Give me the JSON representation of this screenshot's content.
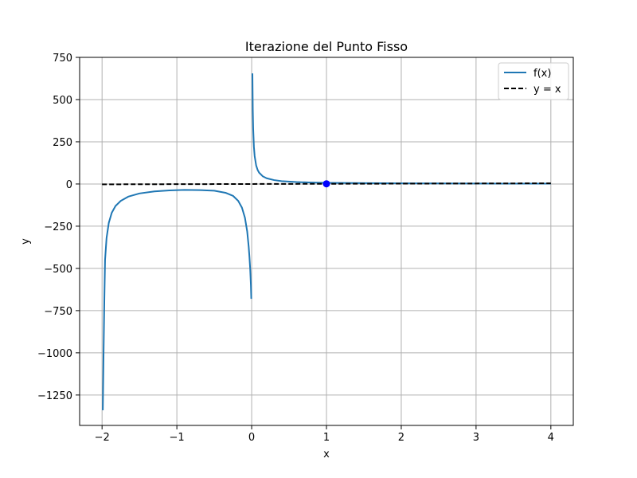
{
  "chart_data": {
    "type": "line",
    "title": "Iterazione del Punto Fisso",
    "xlabel": "x",
    "ylabel": "y",
    "xlim": [
      -2.3,
      4.3
    ],
    "ylim": [
      -1430,
      750
    ],
    "x_ticks": [
      -2,
      -1,
      0,
      1,
      2,
      3,
      4
    ],
    "x_tick_labels": [
      "−2",
      "−1",
      "0",
      "1",
      "2",
      "3",
      "4"
    ],
    "y_ticks": [
      750,
      500,
      250,
      0,
      -250,
      -500,
      -750,
      -1000,
      -1250
    ],
    "y_tick_labels": [
      "750",
      "500",
      "250",
      "0",
      "−250",
      "−500",
      "−750",
      "−1000",
      "−1250"
    ],
    "grid": true,
    "legend_position": "top-right",
    "series": [
      {
        "name": "f(x)",
        "style": "solid",
        "color": "#1f77b4",
        "segments": [
          [
            [
              -1.99,
              -1340
            ],
            [
              -1.98,
              -1000
            ],
            [
              -1.97,
              -700
            ],
            [
              -1.96,
              -450
            ],
            [
              -1.94,
              -320
            ],
            [
              -1.91,
              -230
            ],
            [
              -1.87,
              -170
            ],
            [
              -1.82,
              -130
            ],
            [
              -1.75,
              -100
            ],
            [
              -1.65,
              -75
            ],
            [
              -1.5,
              -56
            ],
            [
              -1.3,
              -44
            ],
            [
              -1.1,
              -38
            ],
            [
              -0.9,
              -35
            ],
            [
              -0.7,
              -36
            ],
            [
              -0.5,
              -40
            ],
            [
              -0.35,
              -52
            ],
            [
              -0.25,
              -70
            ],
            [
              -0.18,
              -100
            ],
            [
              -0.13,
              -140
            ],
            [
              -0.09,
              -200
            ],
            [
              -0.06,
              -280
            ],
            [
              -0.04,
              -370
            ],
            [
              -0.03,
              -430
            ],
            [
              -0.02,
              -500
            ],
            [
              -0.01,
              -600
            ],
            [
              -0.005,
              -680
            ]
          ],
          [
            [
              0.01,
              655
            ],
            [
              0.015,
              440
            ],
            [
              0.02,
              330
            ],
            [
              0.03,
              220
            ],
            [
              0.04,
              165
            ],
            [
              0.06,
              110
            ],
            [
              0.08,
              83
            ],
            [
              0.1,
              67
            ],
            [
              0.15,
              45
            ],
            [
              0.2,
              34
            ],
            [
              0.3,
              23
            ],
            [
              0.4,
              17
            ],
            [
              0.6,
              11.5
            ],
            [
              0.8,
              8.5
            ],
            [
              1.0,
              7
            ],
            [
              1.5,
              5
            ],
            [
              2.0,
              3.8
            ],
            [
              3.0,
              2.5
            ],
            [
              4.0,
              2
            ]
          ]
        ]
      },
      {
        "name": "y = x",
        "style": "dashed",
        "color": "#000000",
        "segments": [
          [
            [
              -2,
              -2
            ],
            [
              4,
              4
            ]
          ]
        ]
      }
    ],
    "points": [
      {
        "x": 1,
        "y": 1,
        "color": "#0000ff"
      }
    ]
  }
}
